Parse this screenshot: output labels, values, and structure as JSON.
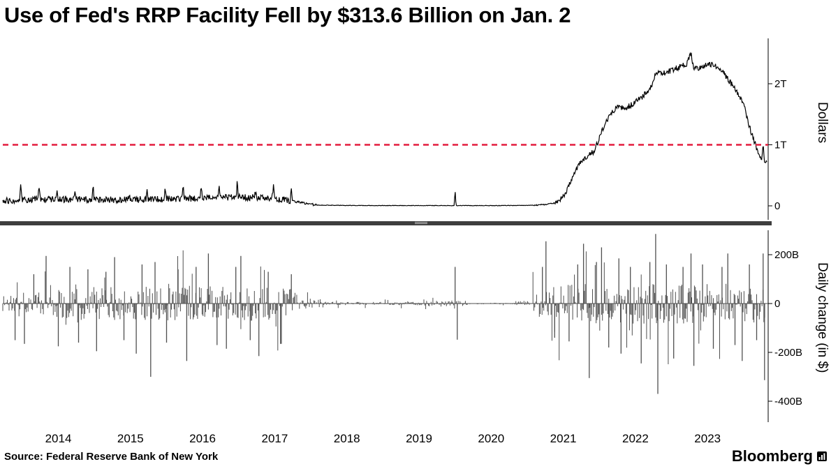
{
  "title": "Use of Fed's RRP Facility Fell by $313.6 Billion on Jan. 2",
  "source": "Source: Federal Reserve Bank of New York",
  "brand": {
    "name": "Bloomberg"
  },
  "chart_data": {
    "type": "line+bar",
    "title": "Use of Fed's RRP Facility Fell by $313.6 Billion on Jan. 2",
    "x_domain": [
      2013.45,
      2024.06
    ],
    "x_ticks": [
      2014,
      2015,
      2016,
      2017,
      2018,
      2019,
      2020,
      2021,
      2022,
      2023
    ],
    "seed": 1337,
    "grid": false,
    "legend": "none",
    "panels": [
      {
        "name": "rrp_balance",
        "type": "line",
        "color": "#000000",
        "ylabel": "Dollars",
        "unit": "billions of dollars",
        "yticks": [
          {
            "v": 2000,
            "label": "2T"
          },
          {
            "v": 1000,
            "label": "1T"
          },
          {
            "v": 0,
            "label": "0"
          }
        ],
        "ylim_billions": [
          -60,
          2760
        ],
        "reference_line": {
          "value": 1000,
          "label": "1T",
          "color": "#e31b3d",
          "style": "dashed"
        },
        "trend_points": [
          [
            2013.45,
            80
          ],
          [
            2014.0,
            115
          ],
          [
            2014.6,
            105
          ],
          [
            2015.2,
            100
          ],
          [
            2015.8,
            115
          ],
          [
            2016.3,
            130
          ],
          [
            2016.9,
            140
          ],
          [
            2017.3,
            115
          ],
          [
            2017.55,
            60
          ],
          [
            2017.8,
            12
          ],
          [
            2018.3,
            6
          ],
          [
            2019.2,
            5
          ],
          [
            2020.3,
            4
          ],
          [
            2020.8,
            10
          ],
          [
            2021.0,
            25
          ],
          [
            2021.15,
            60
          ],
          [
            2021.25,
            200
          ],
          [
            2021.35,
            480
          ],
          [
            2021.45,
            700
          ],
          [
            2021.55,
            810
          ],
          [
            2021.65,
            900
          ],
          [
            2021.75,
            1200
          ],
          [
            2021.85,
            1450
          ],
          [
            2021.97,
            1650
          ],
          [
            2022.06,
            1580
          ],
          [
            2022.22,
            1700
          ],
          [
            2022.33,
            1800
          ],
          [
            2022.42,
            1920
          ],
          [
            2022.5,
            2140
          ],
          [
            2022.56,
            2210
          ],
          [
            2022.63,
            2160
          ],
          [
            2022.72,
            2230
          ],
          [
            2022.82,
            2270
          ],
          [
            2022.93,
            2330
          ],
          [
            2022.99,
            2500
          ],
          [
            2023.03,
            2230
          ],
          [
            2023.12,
            2270
          ],
          [
            2023.2,
            2300
          ],
          [
            2023.3,
            2330
          ],
          [
            2023.38,
            2240
          ],
          [
            2023.45,
            2170
          ],
          [
            2023.52,
            2040
          ],
          [
            2023.6,
            1930
          ],
          [
            2023.68,
            1760
          ],
          [
            2023.74,
            1570
          ],
          [
            2023.79,
            1340
          ],
          [
            2023.84,
            1150
          ],
          [
            2023.89,
            980
          ],
          [
            2023.93,
            840
          ],
          [
            2023.97,
            760
          ],
          [
            2023.99,
            1018
          ],
          [
            2024.01,
            705
          ],
          [
            2024.04,
            735
          ]
        ],
        "noise": [
          [
            2013.45,
            2017.45,
            55
          ],
          [
            2017.45,
            2017.8,
            18
          ],
          [
            2017.8,
            2020.8,
            4
          ],
          [
            2020.8,
            2021.1,
            10
          ],
          [
            2021.1,
            2021.6,
            35
          ],
          [
            2021.6,
            2023.9,
            48
          ],
          [
            2023.9,
            2024.06,
            20
          ]
        ],
        "quarterly_spikes": {
          "from": 2013.7,
          "to": 2017.55,
          "min": 60,
          "max": 320
        },
        "spikes": [
          [
            2019.72,
            265
          ]
        ]
      },
      {
        "name": "daily_change",
        "type": "bar",
        "color": "#4f4f4f",
        "ylabel": "Daily change (in $)",
        "unit": "billions of dollars",
        "yticks": [
          {
            "v": 200,
            "label": "200B"
          },
          {
            "v": 0,
            "label": "0"
          },
          {
            "v": -200,
            "label": "-200B"
          },
          {
            "v": -400,
            "label": "-400B"
          }
        ],
        "ylim_billions": [
          -485,
          300
        ],
        "final_change_billions": -313.6,
        "envelope": [
          [
            2013.45,
            2014.0,
            48
          ],
          [
            2014.0,
            2017.55,
            70
          ],
          [
            2017.55,
            2017.9,
            22
          ],
          [
            2017.9,
            2019.3,
            7
          ],
          [
            2019.3,
            2019.9,
            11
          ],
          [
            2019.9,
            2020.55,
            3
          ],
          [
            2020.55,
            2020.8,
            10
          ],
          [
            2020.8,
            2021.15,
            55
          ],
          [
            2021.15,
            2024.03,
            82
          ]
        ],
        "spikes": [
          [
            2013.62,
            -150
          ],
          [
            2013.75,
            -165
          ],
          [
            2013.88,
            120
          ],
          [
            2014.05,
            195
          ],
          [
            2014.22,
            -175
          ],
          [
            2014.38,
            150
          ],
          [
            2014.5,
            -160
          ],
          [
            2014.63,
            140
          ],
          [
            2014.75,
            -195
          ],
          [
            2014.88,
            130
          ],
          [
            2015.0,
            190
          ],
          [
            2015.13,
            -150
          ],
          [
            2015.3,
            -205
          ],
          [
            2015.38,
            160
          ],
          [
            2015.5,
            -300
          ],
          [
            2015.56,
            170
          ],
          [
            2015.72,
            -160
          ],
          [
            2015.88,
            140
          ],
          [
            2016.0,
            -235
          ],
          [
            2016.13,
            150
          ],
          [
            2016.3,
            205
          ],
          [
            2016.42,
            -170
          ],
          [
            2016.55,
            -185
          ],
          [
            2016.68,
            150
          ],
          [
            2016.75,
            195
          ],
          [
            2016.88,
            -150
          ],
          [
            2017.0,
            -215
          ],
          [
            2017.13,
            130
          ],
          [
            2017.3,
            -165
          ],
          [
            2017.45,
            120
          ],
          [
            2019.72,
            150
          ],
          [
            2019.75,
            -148
          ],
          [
            2020.93,
            150
          ],
          [
            2020.98,
            255
          ],
          [
            2021.1,
            -140
          ],
          [
            2021.3,
            -155
          ],
          [
            2021.42,
            160
          ],
          [
            2021.5,
            245
          ],
          [
            2021.58,
            -305
          ],
          [
            2021.68,
            170
          ],
          [
            2021.75,
            230
          ],
          [
            2021.85,
            -180
          ],
          [
            2021.99,
            185
          ],
          [
            2022.02,
            -205
          ],
          [
            2022.15,
            150
          ],
          [
            2022.3,
            -245
          ],
          [
            2022.42,
            170
          ],
          [
            2022.5,
            285
          ],
          [
            2022.53,
            -370
          ],
          [
            2022.65,
            160
          ],
          [
            2022.75,
            -225
          ],
          [
            2022.88,
            150
          ],
          [
            2022.99,
            205
          ],
          [
            2023.03,
            -255
          ],
          [
            2023.15,
            160
          ],
          [
            2023.3,
            -185
          ],
          [
            2023.42,
            150
          ],
          [
            2023.5,
            205
          ],
          [
            2023.6,
            -170
          ],
          [
            2023.7,
            -235
          ],
          [
            2023.8,
            160
          ],
          [
            2023.9,
            -150
          ],
          [
            2023.99,
            205
          ],
          [
            2024.01,
            -313.6
          ]
        ]
      }
    ],
    "source": "Source: Federal Reserve Bank of New York",
    "brand": "Bloomberg"
  }
}
